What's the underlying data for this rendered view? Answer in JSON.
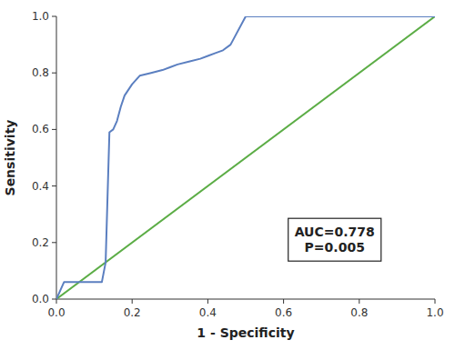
{
  "chart_data": {
    "type": "line",
    "series": [
      {
        "x": [
          0.0,
          0.02,
          0.02,
          0.04,
          0.06,
          0.08,
          0.1,
          0.12,
          0.13,
          0.14,
          0.15,
          0.16,
          0.17,
          0.18,
          0.2,
          0.22,
          0.25,
          0.28,
          0.3,
          0.32,
          0.35,
          0.38,
          0.4,
          0.42,
          0.44,
          0.46,
          0.5,
          1.0
        ],
        "values": [
          0.0,
          0.06,
          0.06,
          0.06,
          0.06,
          0.06,
          0.06,
          0.06,
          0.13,
          0.59,
          0.6,
          0.63,
          0.68,
          0.72,
          0.76,
          0.79,
          0.8,
          0.81,
          0.82,
          0.83,
          0.84,
          0.85,
          0.86,
          0.87,
          0.88,
          0.9,
          1.0,
          1.0
        ],
        "color": "#5B7FC0"
      },
      {
        "x": [
          0.0,
          1.0
        ],
        "values": [
          0.0,
          1.0
        ],
        "color": "#5CAD46"
      }
    ],
    "x_label": "1 - Specificity",
    "y_label": "Sensitivity",
    "xlim": [
      0.0,
      1.0
    ],
    "ylim": [
      0.0,
      1.0
    ],
    "xticks": [
      {
        "value": 0.0,
        "label": "0.0"
      },
      0.2,
      0.4,
      0.6,
      0.8,
      {
        "value": 1.0,
        "label": "1.0"
      }
    ],
    "yticks": [
      {
        "value": 0.0,
        "label": "0.0"
      },
      0.2,
      0.4,
      0.6,
      0.8,
      {
        "value": 1.0,
        "label": "1.0"
      }
    ],
    "annotation": "AUC=0.778\nP=0.005",
    "grid": false
  }
}
